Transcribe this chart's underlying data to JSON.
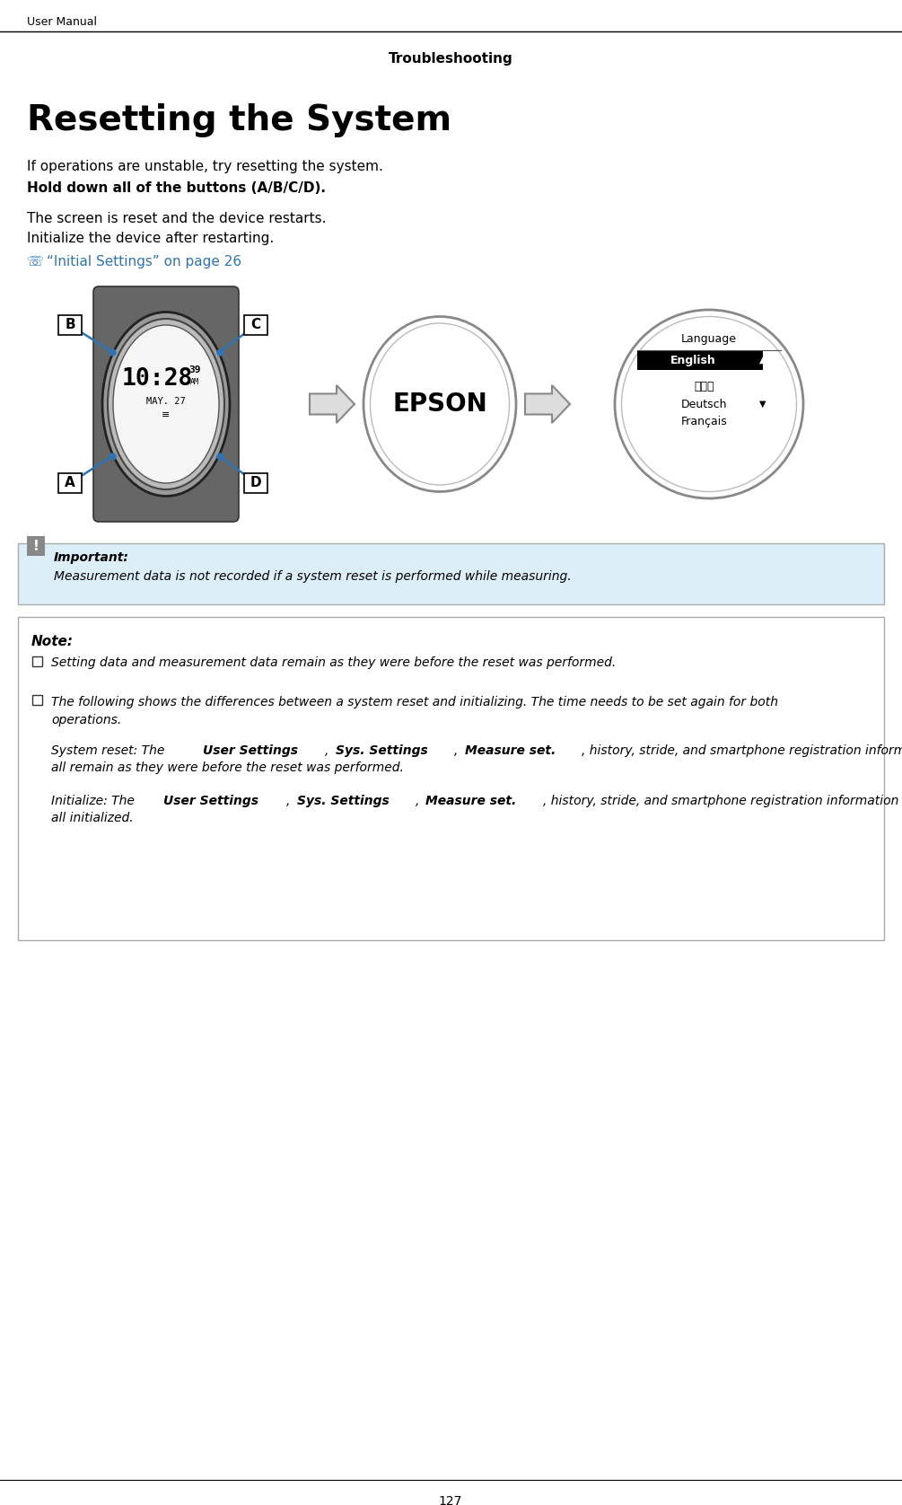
{
  "page_bg": "#ffffff",
  "header_text": "User Manual",
  "section_title": "Troubleshooting",
  "main_title": "Resetting the System",
  "intro_line": "If operations are unstable, try resetting the system.",
  "bold_line": "Hold down all of the buttons (A/B/C/D).",
  "step1": "The screen is reset and the device restarts.",
  "step2": "Initialize the device after restarting.",
  "link_color": "#2e74b5",
  "link_text": "“Initial Settings” on page 26",
  "important_bg": "#dceef8",
  "important_label": "Important:",
  "important_text": "Measurement data is not recorded if a system reset is performed while measuring.",
  "note_label": "Note:",
  "note_item1": "Setting data and measurement data remain as they were before the reset was performed.",
  "note_item2_line1": "The following shows the differences between a system reset and initializing. The time needs to be set again for both",
  "note_item2_line2": "operations.",
  "sr_prefix": "System reset: The ",
  "sr_b1": "User Settings",
  "sr_m1": ", ",
  "sr_b2": "Sys. Settings",
  "sr_m2": ", ",
  "sr_b3": "Measure set.",
  "sr_rest": ", history, stride, and smartphone registration information",
  "sr_line2": "all remain as they were before the reset was performed.",
  "init_prefix": "Initialize: The ",
  "init_b1": "User Settings",
  "init_m1": ", ",
  "init_b2": "Sys. Settings",
  "init_m2": ", ",
  "init_b3": "Measure set.",
  "init_rest": ", history, stride, and smartphone registration information are",
  "init_line2": "all initialized.",
  "footer_page": "127"
}
